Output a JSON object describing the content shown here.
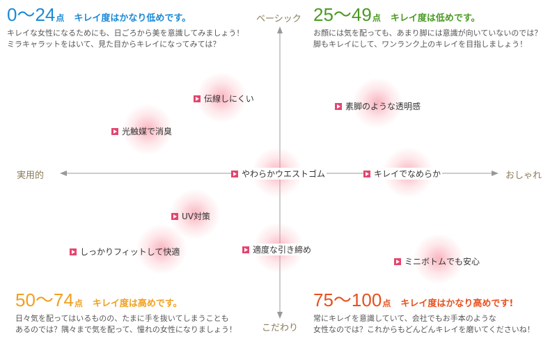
{
  "quadrants": {
    "top_left": {
      "range": "0～24",
      "unit": "点",
      "title": "キレイ度はかなり低めです。",
      "color": "#1a8ad6",
      "desc": [
        "キレイな女性になるためにも、日ごろから美を意識してみましょう！",
        "ミラキャラットをはいて、見た目からキレイになってみては？"
      ]
    },
    "top_right": {
      "range": "25～49",
      "unit": "点",
      "title": "キレイ度は低めです。",
      "color": "#4a9a22",
      "desc": [
        "お顔には気を配っても、あまり脚には意識が向いていないのでは？",
        "脚もキレイにして、ワンランク上のキレイを目指しましょう！"
      ]
    },
    "bottom_left": {
      "range": "50～74",
      "unit": "点",
      "title": "キレイ度は高めです。",
      "color": "#f0a020",
      "desc": [
        "日々気を配ってはいるものの、たまに手を抜いてしまうことも",
        "あるのでは？隅々まで気を配って、憧れの女性になりましょう！"
      ]
    },
    "bottom_right": {
      "range": "75～100",
      "unit": "点",
      "title": "キレイ度はかなり高めです!",
      "color": "#e8501e",
      "desc": [
        "常にキレイを意識していて、会社でもお手本のような",
        "女性なのでは？これからもどんどんキレイを磨いてくださいね！"
      ]
    }
  },
  "axes": {
    "top": "ベーシック",
    "bottom": "こだわり",
    "left": "実用的",
    "right": "おしゃれ"
  },
  "items": [
    {
      "label": "伝線しにくい"
    },
    {
      "label": "素脚のような透明感"
    },
    {
      "label": "光触媒で消臭"
    },
    {
      "label": "やわらかウエストゴム"
    },
    {
      "label": "キレイでなめらか"
    },
    {
      "label": "UV対策"
    },
    {
      "label": "しっかりフィットして快適"
    },
    {
      "label": "適度な引き締め"
    },
    {
      "label": "ミニボトムでも安心"
    }
  ],
  "colors": {
    "axis": "#999999",
    "bullet": "#e3456f",
    "glow": "#f5788c",
    "axis_label": "#8a7a5a"
  }
}
